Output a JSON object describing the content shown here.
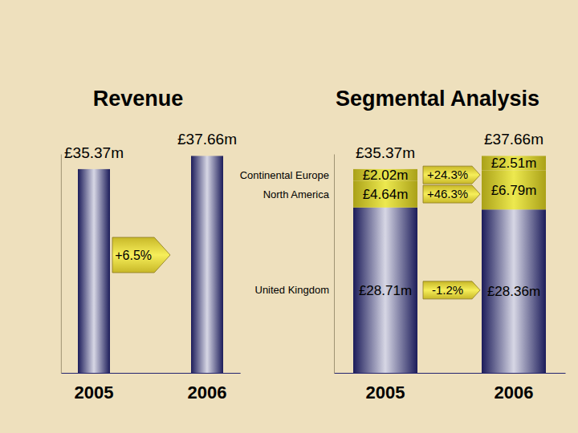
{
  "chart_data": [
    {
      "type": "bar",
      "title": "Revenue",
      "categories": [
        "2005",
        "2006"
      ],
      "values": [
        35.37,
        37.66
      ],
      "value_labels": [
        "£35.37m",
        "£37.66m"
      ],
      "color": "#23236f",
      "data_labels": true,
      "ylim": [
        0,
        38
      ],
      "tick_labels": "x",
      "annotations": [
        "+6.5%"
      ]
    },
    {
      "type": "bar",
      "stacked": true,
      "title": "Segmental Analysis",
      "categories": [
        "2005",
        "2006"
      ],
      "series": [
        {
          "name": "United Kingdom",
          "color": "#23236f",
          "values": [
            28.71,
            28.36
          ],
          "value_labels": [
            "£28.71m",
            "£28.36m"
          ],
          "annotation": "-1.2%"
        },
        {
          "name": "North America",
          "color": "#d2c81e",
          "values": [
            4.64,
            6.79
          ],
          "value_labels": [
            "£4.64m",
            "£6.79m"
          ],
          "annotation": "+46.3%"
        },
        {
          "name": "Continental Europe",
          "color": "#d2c81e",
          "values": [
            2.02,
            2.51
          ],
          "value_labels": [
            "£2.02m",
            "£2.51m"
          ],
          "annotation": "+24.3%"
        }
      ],
      "totals": {
        "values": [
          35.37,
          37.66
        ],
        "value_labels": [
          "£35.37m",
          "£37.66m"
        ]
      },
      "data_labels": true,
      "ylim": [
        0,
        38
      ],
      "tick_labels": "x"
    }
  ]
}
